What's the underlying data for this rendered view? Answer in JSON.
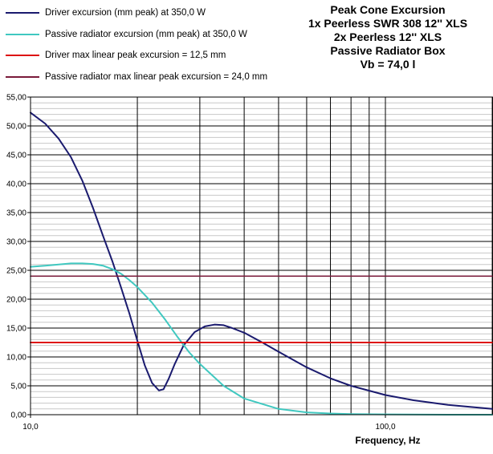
{
  "chart_data": {
    "type": "line",
    "title_lines": [
      "Peak Cone Excursion",
      "1x Peerless SWR 308 12'' XLS",
      "2x Peerless 12'' XLS",
      "Passive Radiator Box",
      "Vb = 74,0 l"
    ],
    "xlabel": "Frequency, Hz",
    "ylabel": "",
    "x_scale": "log",
    "xlim": [
      10,
      200
    ],
    "ylim": [
      0,
      55
    ],
    "y_ticks": [
      "0,00",
      "5,00",
      "10,00",
      "15,00",
      "20,00",
      "25,00",
      "30,00",
      "35,00",
      "40,00",
      "45,00",
      "50,00",
      "55,00"
    ],
    "x_tick_labels": [
      {
        "value": 10,
        "label": "10,0"
      },
      {
        "value": 100,
        "label": "100,0"
      }
    ],
    "grid": true,
    "legend_position": "top-left",
    "series": [
      {
        "name": "Driver excursion (mm peak) at 350,0 W",
        "color": "#1a1a6e",
        "x": [
          10,
          11,
          12,
          13,
          14,
          15,
          16,
          17,
          18,
          19,
          20,
          21,
          22,
          23,
          23.7,
          24.5,
          25.5,
          27,
          29,
          31,
          33,
          35,
          37,
          40,
          45,
          50,
          60,
          70,
          80,
          100,
          120,
          150,
          200
        ],
        "y": [
          52.3,
          50.4,
          47.8,
          44.6,
          40.5,
          35.8,
          31.0,
          26.6,
          22.0,
          17.5,
          12.8,
          8.5,
          5.5,
          4.2,
          4.4,
          6.2,
          8.8,
          12.0,
          14.3,
          15.3,
          15.6,
          15.5,
          15.0,
          14.2,
          12.5,
          10.9,
          8.2,
          6.3,
          5.0,
          3.4,
          2.5,
          1.7,
          1.0
        ]
      },
      {
        "name": "Passive radiator excursion (mm peak) at 350,0 W",
        "color": "#40c8c0",
        "x": [
          10,
          11,
          12,
          13,
          14,
          15,
          16,
          17,
          18,
          19,
          20,
          22,
          24,
          26,
          28,
          30,
          35,
          40,
          50,
          60,
          70,
          80,
          100,
          150,
          200
        ],
        "y": [
          25.6,
          25.8,
          26.0,
          26.2,
          26.2,
          26.1,
          25.8,
          25.2,
          24.4,
          23.3,
          22.1,
          19.4,
          16.4,
          13.4,
          10.8,
          8.8,
          5.0,
          2.8,
          1.0,
          0.4,
          0.2,
          0.1,
          0.05,
          0.0,
          0.0
        ]
      },
      {
        "name": "Driver max linear peak excursion = 12,5 mm",
        "color": "#dd1111",
        "x": [
          10,
          200
        ],
        "y": [
          12.5,
          12.5
        ]
      },
      {
        "name": "Passive radiator max linear peak excursion = 24,0 mm",
        "color": "#7a1a3a",
        "x": [
          10,
          200
        ],
        "y": [
          24.0,
          24.0
        ]
      }
    ]
  }
}
